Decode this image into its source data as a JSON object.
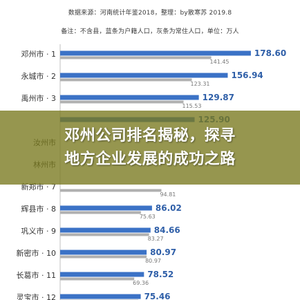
{
  "header": {
    "source": "数据来源：河南统计年鉴2018，整理：by散寒苏 2019.8",
    "note": "备注：不含县，蓝条为户籍人口，灰条为常住人口，单位：万人"
  },
  "overlay": {
    "line1": "邓州公司排名揭秘，探寻",
    "line2": "地方企业发展的成功之路"
  },
  "colors": {
    "blue": "#3b72c6",
    "gray": "#b0b0b0",
    "blue_label": "#2f5fa8",
    "gray_label": "#777777",
    "overlay": "#78781e"
  },
  "chart_data": {
    "type": "bar",
    "orientation": "horizontal",
    "categories": [
      "邓州市 · 1",
      "永城市 · 2",
      "禹州市 · 3",
      "",
      "汝州市",
      "林州市",
      "新郑市 · 7",
      "辉县市 · 8",
      "巩义市 · 9",
      "新密市 · 10",
      "长葛市 · 11",
      "灵宝市 · 12"
    ],
    "series": [
      {
        "role": "household",
        "values": [
          178.6,
          156.94,
          129.87,
          125.9,
          null,
          null,
          null,
          86.02,
          84.66,
          80.97,
          78.52,
          75.46
        ],
        "labels": [
          "178.60",
          "156.94",
          "129.87",
          "125.90",
          "",
          "",
          "",
          "86.02",
          "84.66",
          "80.97",
          "78.52",
          "75.46"
        ]
      },
      {
        "role": "resident",
        "values": [
          141.45,
          123.31,
          115.53,
          null,
          null,
          null,
          94.81,
          75.63,
          83.27,
          80.97,
          69.36,
          73.17
        ],
        "labels": [
          "141.45",
          "123.31",
          "115.53",
          "",
          "",
          "",
          "94.81",
          "75.63",
          "83.27",
          "80.97",
          "69.36",
          ""
        ]
      }
    ],
    "xlim": [
      0,
      200
    ]
  }
}
